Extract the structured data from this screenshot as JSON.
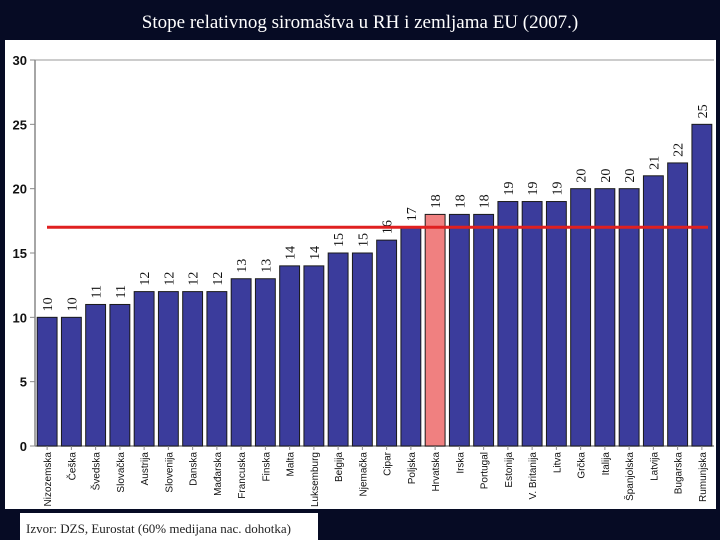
{
  "header": {
    "title": "Stope relativnog siromaštva u RH i zemljama EU (2007.)"
  },
  "footer": {
    "source": "Izvor: DZS, Eurostat  (60% medijana nac. dohotka)"
  },
  "colors": {
    "bar": "#3b3c9c",
    "highlight": "#f08080",
    "reference_line": "#e02020",
    "background": "#ffffff",
    "frame": "#060b24"
  },
  "chart_data": {
    "type": "bar",
    "title": "Stope relativnog siromaštva u RH i zemljama EU (2007.)",
    "categories": [
      "Nizozemska",
      "Češka",
      "Švedska",
      "Slovačka",
      "Austrija",
      "Slovenija",
      "Danska",
      "Mađarska",
      "Francuska",
      "Finska",
      "Malta",
      "Luksemburg",
      "Belgija",
      "Njemačka",
      "Cipar",
      "Poljska",
      "Hrvatska",
      "Irska",
      "Portugal",
      "Estonija",
      "V. Britanija",
      "Litva",
      "Grčka",
      "Italija",
      "Španjolska",
      "Latvija",
      "Bugarska",
      "Rumunjska"
    ],
    "values": [
      10,
      10,
      11,
      11,
      12,
      12,
      12,
      12,
      13,
      13,
      14,
      14,
      15,
      15,
      16,
      17,
      18,
      18,
      18,
      19,
      19,
      19,
      20,
      20,
      20,
      21,
      22,
      25
    ],
    "highlight_category": "Hrvatska",
    "reference_line": 17,
    "ylim": [
      0,
      30
    ],
    "yticks": [
      0,
      5,
      10,
      15,
      20,
      25,
      30
    ],
    "xlabel": "",
    "ylabel": "",
    "grid": false
  }
}
